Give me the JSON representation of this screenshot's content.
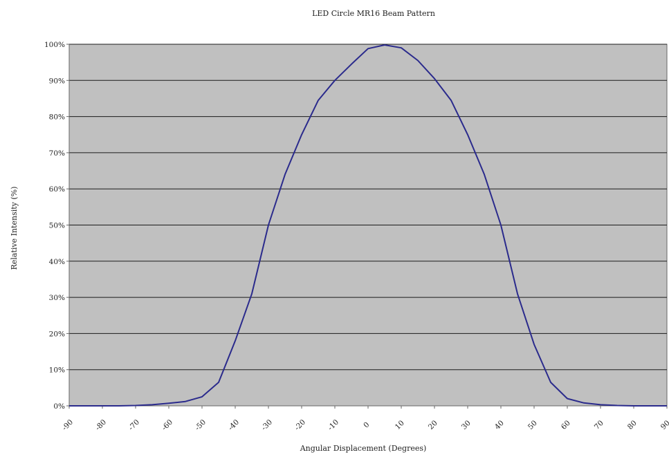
{
  "chart_data": {
    "type": "line",
    "title": "LED Circle MR16 Beam Pattern",
    "xlabel": "Angular Displacement (Degrees)",
    "ylabel": "Relative Intensity (%)",
    "xlim": [
      -90,
      90
    ],
    "ylim": [
      0,
      100
    ],
    "x_ticks": [
      -90,
      -80,
      -70,
      -60,
      -50,
      -40,
      -30,
      -20,
      -10,
      0,
      10,
      20,
      30,
      40,
      50,
      60,
      70,
      80,
      90
    ],
    "x_tick_labels": [
      "-90",
      "-80",
      "-70",
      "-60",
      "-50",
      "-40",
      "-30",
      "-20",
      "-10",
      "0",
      "10",
      "20",
      "30",
      "40",
      "50",
      "60",
      "70",
      "80",
      "90"
    ],
    "y_ticks": [
      0,
      10,
      20,
      30,
      40,
      50,
      60,
      70,
      80,
      90,
      100
    ],
    "y_tick_labels": [
      "0%",
      "10%",
      "20%",
      "30%",
      "40%",
      "50%",
      "60%",
      "70%",
      "80%",
      "90%",
      "100%"
    ],
    "grid": "horizontal",
    "legend": "none",
    "colors": {
      "plot_background": "#c0c0c0",
      "line": "#2a2a8c",
      "gridline": "#1a1a1a",
      "axis": "#666666"
    },
    "series": [
      {
        "x": [
          -90,
          -85,
          -80,
          -75,
          -70,
          -65,
          -60,
          -55,
          -50,
          -45,
          -40,
          -35,
          -30,
          -25,
          -20,
          -15,
          -10,
          -5,
          0,
          5,
          10,
          15,
          20,
          25,
          30,
          35,
          40,
          45,
          50,
          55,
          60,
          65,
          70,
          75,
          80,
          85,
          90
        ],
        "y": [
          0,
          0,
          0,
          0,
          0.1,
          0.3,
          0.7,
          1.2,
          2.5,
          6.5,
          18,
          31,
          50,
          64,
          75,
          84.5,
          90,
          94.5,
          98.8,
          99.8,
          99,
          95.5,
          90.5,
          84.5,
          75,
          64,
          50,
          31,
          17,
          6.5,
          2,
          0.8,
          0.3,
          0.1,
          0,
          0,
          0
        ]
      }
    ]
  }
}
